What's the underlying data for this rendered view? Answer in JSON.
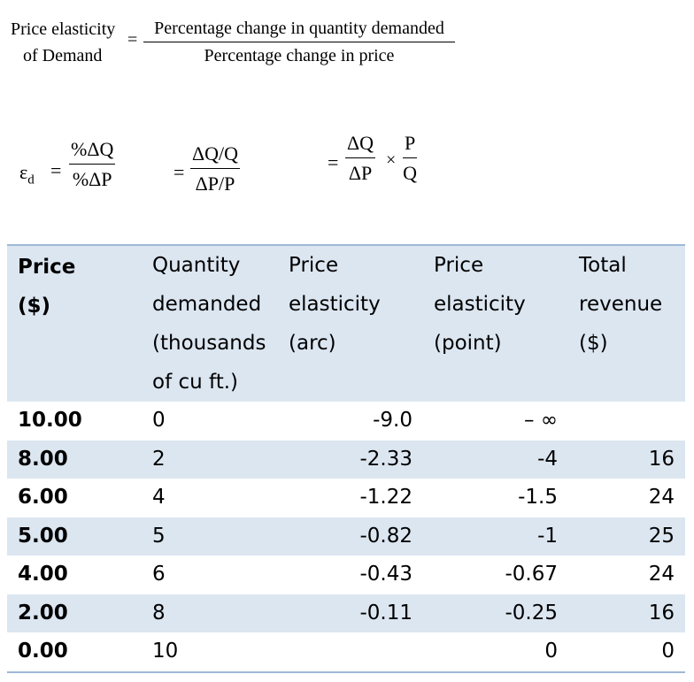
{
  "definition": {
    "lhs_line1": "Price elasticity",
    "lhs_line2": "of Demand",
    "equals": "=",
    "numerator": "Percentage change in quantity demanded",
    "denominator": "Percentage change in price"
  },
  "symbolic": {
    "epsilon": "ε",
    "epsilon_sub": "d",
    "eq1": "=",
    "f1_num": "%ΔQ",
    "f1_den": "%ΔP",
    "eq2": "=",
    "f2_num": "ΔQ/Q",
    "f2_den": "ΔP/P",
    "eq3": "=",
    "f3_num": "ΔQ",
    "f3_den": "ΔP",
    "times": "×",
    "f4_num": "P",
    "f4_den": "Q"
  },
  "table": {
    "headers": {
      "price": [
        "Price",
        "($)"
      ],
      "quantity": [
        "Quantity",
        "demanded",
        "(thousands",
        "of cu ft.)"
      ],
      "arc": [
        "Price",
        "elasticity",
        "(arc)"
      ],
      "point": [
        "Price",
        "elasticity",
        "(point)"
      ],
      "revenue": [
        "Total",
        "revenue",
        "($)"
      ]
    },
    "rows": [
      {
        "price": "10.00",
        "quantity": "0",
        "arc": "-9.0",
        "point": "– ∞",
        "revenue": ""
      },
      {
        "price": "8.00",
        "quantity": "2",
        "arc": "-2.33",
        "point": "-4",
        "revenue": "16"
      },
      {
        "price": "6.00",
        "quantity": "4",
        "arc": "-1.22",
        "point": "-1.5",
        "revenue": "24"
      },
      {
        "price": "5.00",
        "quantity": "5",
        "arc": "-0.82",
        "point": "-1",
        "revenue": "25"
      },
      {
        "price": "4.00",
        "quantity": "6",
        "arc": "-0.43",
        "point": "-0.67",
        "revenue": "24"
      },
      {
        "price": "2.00",
        "quantity": "8",
        "arc": "-0.11",
        "point": "-0.25",
        "revenue": "16"
      },
      {
        "price": "0.00",
        "quantity": "10",
        "arc": "",
        "point": "0",
        "revenue": "0"
      }
    ]
  }
}
